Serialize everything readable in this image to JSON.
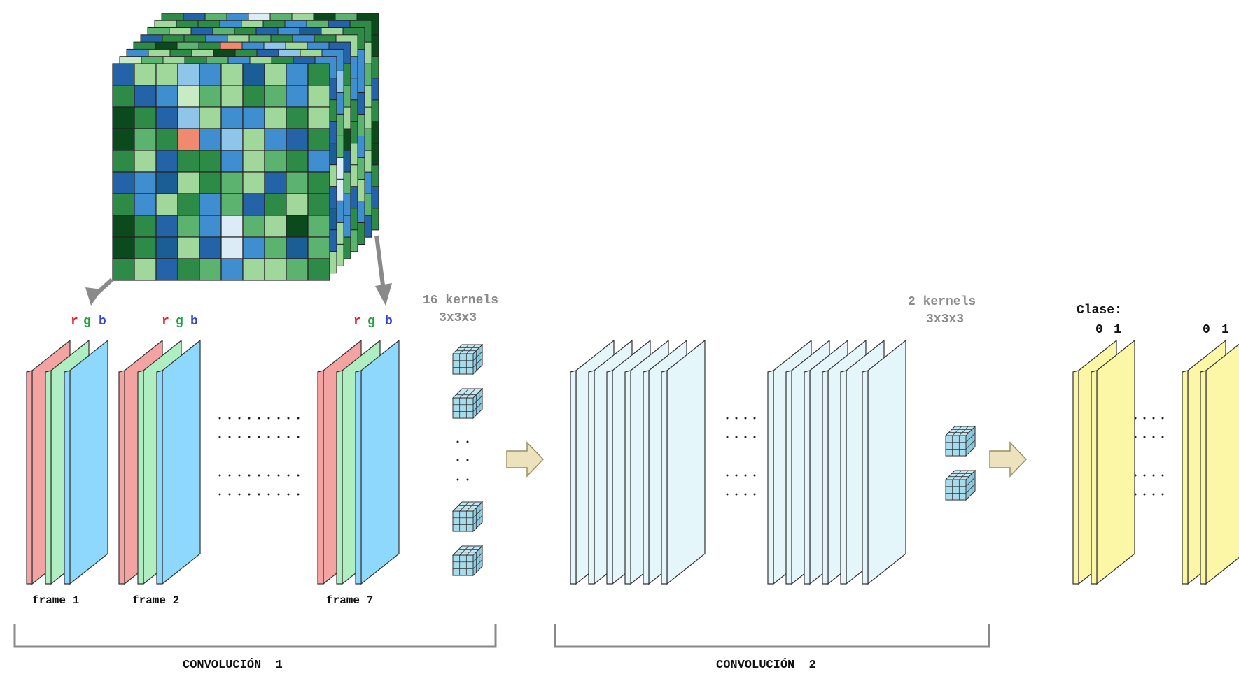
{
  "input_volume": {
    "colors": {
      "c0": "#0a4a1c",
      "c1": "#2e8b47",
      "c2": "#5cb370",
      "c3": "#9fd89a",
      "c4": "#c8ebc4",
      "c5": "#2563a8",
      "c6": "#3f8ed0",
      "c7": "#8ec5e8",
      "c8": "#1b5e96",
      "c9": "#f08a6e",
      "c10": "#dcecf6"
    }
  },
  "rgb_labels": {
    "r": "r",
    "g": "g",
    "b": "b"
  },
  "frames": [
    {
      "label": "frame 1"
    },
    {
      "label": "frame 2"
    },
    {
      "label": "frame 7"
    }
  ],
  "kernels1": {
    "count_label": "16 kernels",
    "size_label": "3x3x3"
  },
  "kernels2": {
    "count_label": "2 kernels",
    "size_label": "3x3x3"
  },
  "clase": {
    "title": "Clase:",
    "values": [
      "0",
      "1"
    ]
  },
  "sections": [
    {
      "label": "CONVOLUCIÓN  1"
    },
    {
      "label": "CONVOLUCIÓN  2"
    }
  ],
  "colors": {
    "red_plane": "#f4a3a3",
    "green_plane": "#aeeec0",
    "blue_plane": "#8dd8fc",
    "feature_plane": "#e4f6fa",
    "class_plane": "#fbf7a6",
    "cube": "#a7dcec",
    "arrow_fill": "#ece3bd",
    "label_r": "#e8232b",
    "label_g": "#1fa33a",
    "label_b": "#2f44d6",
    "kernel_text": "#8a8a8a",
    "bracket": "#888888"
  }
}
